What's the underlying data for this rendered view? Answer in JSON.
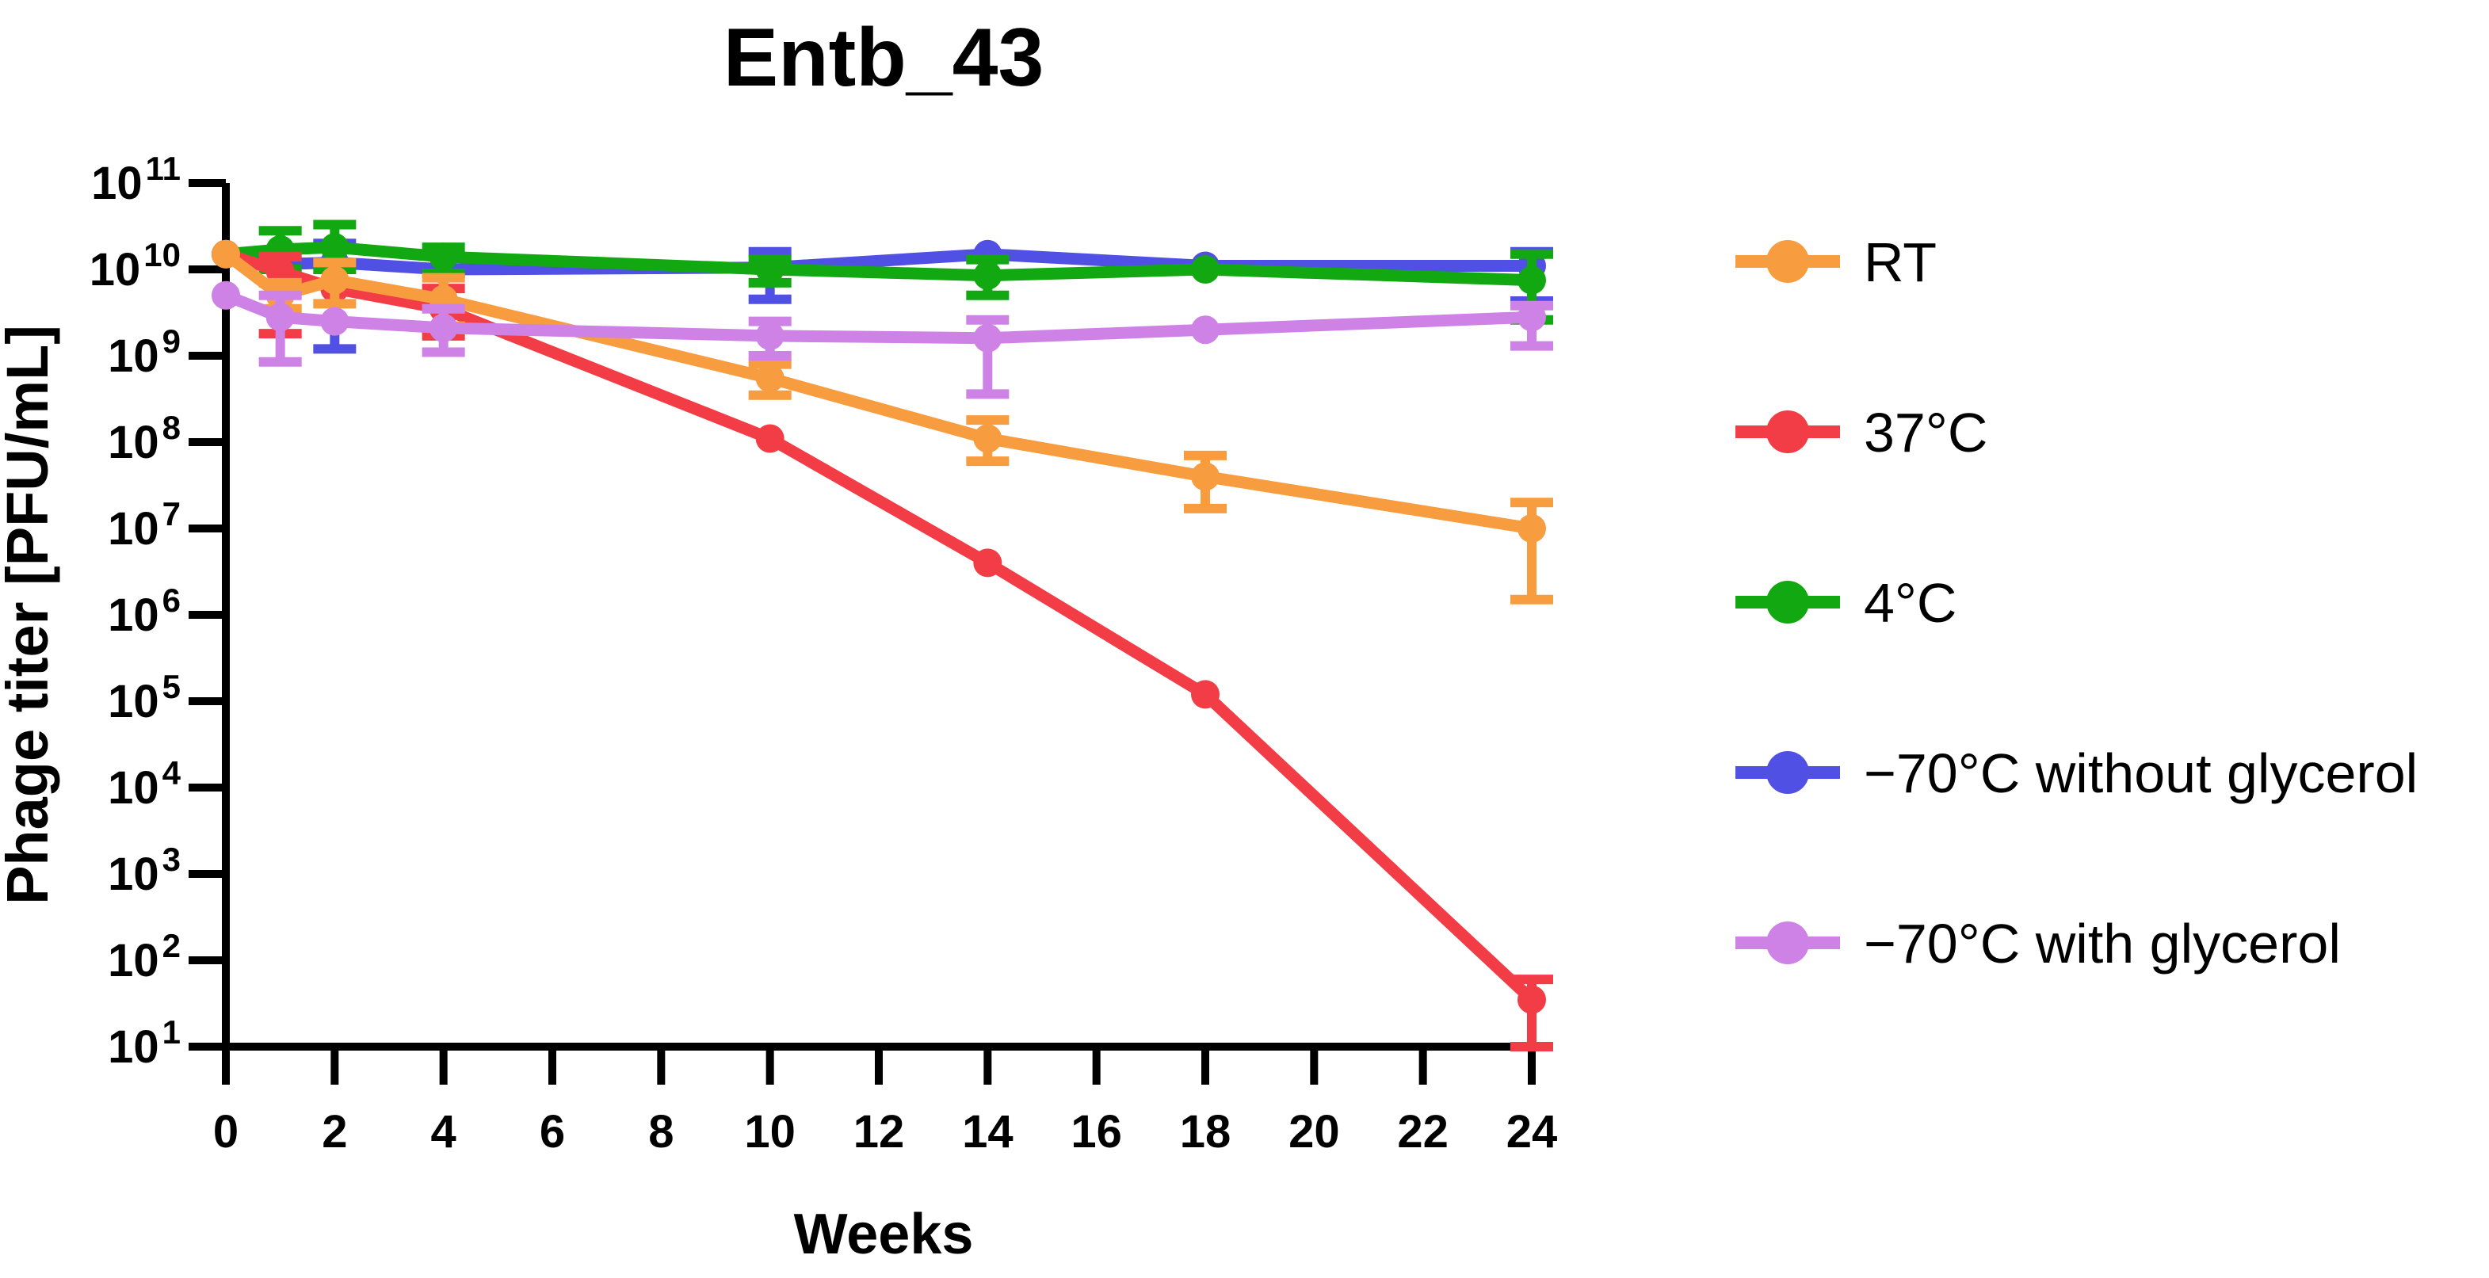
{
  "chart_data": {
    "type": "line",
    "title": "Entb_43",
    "xlabel": "Weeks",
    "ylabel": "Phage titer [PFU/mL]",
    "y_scale": "log10",
    "ylim_exp": [
      1,
      11
    ],
    "xlim": [
      0,
      24
    ],
    "x_tick_step": 2,
    "grid": false,
    "legend_position": "right",
    "axis_color": "#000000",
    "x": [
      0,
      1,
      2,
      4,
      10,
      14,
      18,
      24
    ],
    "series": [
      {
        "name": "RT",
        "color": "#F89C40",
        "marker": "circle",
        "values": [
          15000000000.0,
          5000000000.0,
          7500000000.0,
          4500000000.0,
          550000000.0,
          110000000.0,
          40000000.0,
          10000000.0
        ],
        "err_lo": [
          null,
          3500000000.0,
          4000000000.0,
          2200000000.0,
          350000000.0,
          60000000.0,
          17000000.0,
          1500000.0
        ],
        "err_hi": [
          null,
          7000000000.0,
          12000000000.0,
          8000000000.0,
          800000000.0,
          180000000.0,
          70000000.0,
          20000000.0
        ]
      },
      {
        "name": "37°C",
        "color": "#F23C46",
        "marker": "circle",
        "values": [
          15000000000.0,
          9500000000.0,
          6000000000.0,
          3500000000.0,
          110000000.0,
          4000000.0,
          120000.0,
          35.0
        ],
        "err_lo": [
          null,
          1800000000.0,
          null,
          1700000000.0,
          null,
          null,
          null,
          10.0
        ],
        "err_hi": [
          null,
          14000000000.0,
          null,
          6000000000.0,
          null,
          null,
          null,
          60.0
        ]
      },
      {
        "name": "4°C",
        "color": "#12A812",
        "marker": "circle",
        "values": [
          15000000000.0,
          17000000000.0,
          18000000000.0,
          14000000000.0,
          10000000000.0,
          8500000000.0,
          10000000000.0,
          7500000000.0
        ],
        "err_lo": [
          null,
          10000000000.0,
          10000000000.0,
          9000000000.0,
          7000000000.0,
          5000000000.0,
          null,
          2600000000.0
        ],
        "err_hi": [
          null,
          28000000000.0,
          33000000000.0,
          18000000000.0,
          13000000000.0,
          13000000000.0,
          null,
          15000000000.0
        ]
      },
      {
        "name": "−70°C without glycerol",
        "color": "#5050E4",
        "marker": "circle",
        "values": [
          15000000000.0,
          11500000000.0,
          12000000000.0,
          10000000000.0,
          10500000000.0,
          15000000000.0,
          11000000000.0,
          11000000000.0
        ],
        "err_lo": [
          null,
          null,
          1200000000.0,
          null,
          4500000000.0,
          null,
          null,
          4300000000.0
        ],
        "err_hi": [
          null,
          null,
          20000000000.0,
          null,
          16000000000.0,
          null,
          null,
          16000000000.0
        ]
      },
      {
        "name": "−70°C with glycerol",
        "color": "#CE82E6",
        "marker": "circle",
        "values": [
          5000000000.0,
          2800000000.0,
          2500000000.0,
          2100000000.0,
          1700000000.0,
          1600000000.0,
          2000000000.0,
          2800000000.0
        ],
        "err_lo": [
          null,
          850000000.0,
          null,
          1100000000.0,
          1000000000.0,
          360000000.0,
          null,
          1300000000.0
        ],
        "err_hi": [
          null,
          5000000000.0,
          null,
          3500000000.0,
          2500000000.0,
          2600000000.0,
          null,
          3800000000.0
        ]
      }
    ]
  }
}
